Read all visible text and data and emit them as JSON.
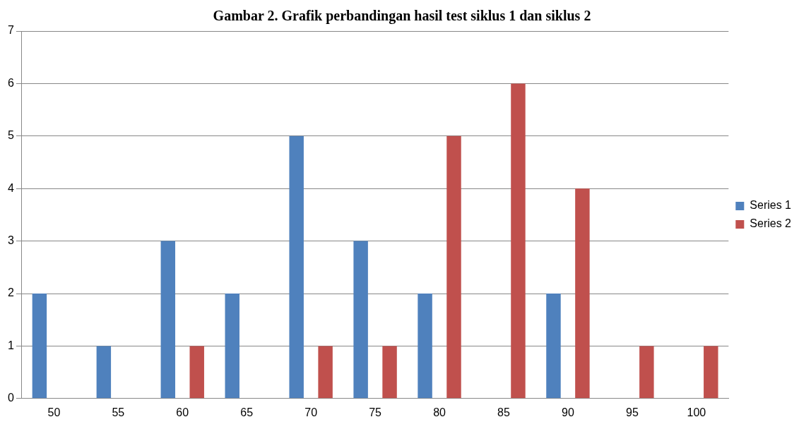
{
  "chart_data": {
    "type": "bar",
    "title": "Gambar 2. Grafik perbandingan hasil test siklus 1 dan siklus 2",
    "categories": [
      "50",
      "55",
      "60",
      "65",
      "70",
      "75",
      "80",
      "85",
      "90",
      "95",
      "100"
    ],
    "series": [
      {
        "name": "Series 1",
        "color": "#4f81bd",
        "values": [
          2,
          1,
          3,
          2,
          5,
          3,
          2,
          0,
          2,
          0,
          0
        ]
      },
      {
        "name": "Series 2",
        "color": "#c0504d",
        "values": [
          0,
          0,
          1,
          0,
          1,
          1,
          5,
          6,
          4,
          1,
          1
        ]
      }
    ],
    "ylim": [
      0,
      7
    ],
    "yticks": [
      0,
      1,
      2,
      3,
      4,
      5,
      6,
      7
    ],
    "grid": "y",
    "legend": "right"
  }
}
